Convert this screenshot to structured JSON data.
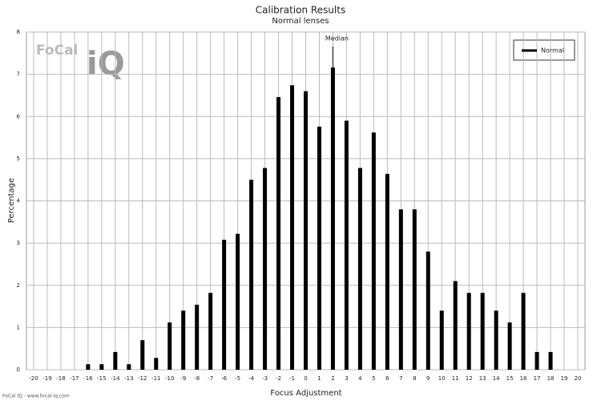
{
  "chart_data": {
    "type": "bar",
    "title": "Calibration Results",
    "subtitle": "Normal lenses",
    "x_label": "Focus Adjustment",
    "y_label": "Percentage",
    "x": [
      -16,
      -15,
      -14,
      -13,
      -12,
      -11,
      -10,
      -9,
      -8,
      -7,
      -6,
      -5,
      -4,
      -3,
      -2,
      -1,
      0,
      1,
      2,
      3,
      4,
      5,
      6,
      7,
      8,
      9,
      10,
      11,
      12,
      13,
      14,
      15,
      16,
      17,
      18
    ],
    "series": [
      {
        "name": "Normal",
        "color": "#000000",
        "values": [
          0.13,
          0.13,
          0.42,
          0.13,
          0.7,
          0.28,
          1.12,
          1.4,
          1.54,
          1.82,
          3.08,
          3.22,
          4.5,
          4.78,
          6.46,
          6.74,
          6.6,
          5.76,
          7.16,
          5.9,
          4.78,
          5.62,
          4.64,
          3.8,
          3.8,
          2.8,
          1.4,
          2.1,
          1.82,
          1.82,
          1.4,
          1.12,
          1.82,
          0.42,
          0.42
        ]
      }
    ],
    "xlim": [
      -20,
      20
    ],
    "xticks": [
      -20,
      -19,
      -18,
      -17,
      -16,
      -15,
      -14,
      -13,
      -12,
      -11,
      -10,
      -9,
      -8,
      -7,
      -6,
      -5,
      -4,
      -3,
      -2,
      -1,
      0,
      1,
      2,
      3,
      4,
      5,
      6,
      7,
      8,
      9,
      10,
      11,
      12,
      13,
      14,
      15,
      16,
      17,
      18,
      19,
      20
    ],
    "ylim": [
      0,
      8
    ],
    "yticks": [
      0,
      1,
      2,
      3,
      4,
      5,
      6,
      7,
      8
    ],
    "grid": true,
    "legend": "top-right",
    "annotations": [
      {
        "text": "Median",
        "x": 2
      }
    ],
    "logo": [
      "FoCal",
      "iQ"
    ],
    "footer": "FoCal IQ - www.focal-iq.com"
  }
}
